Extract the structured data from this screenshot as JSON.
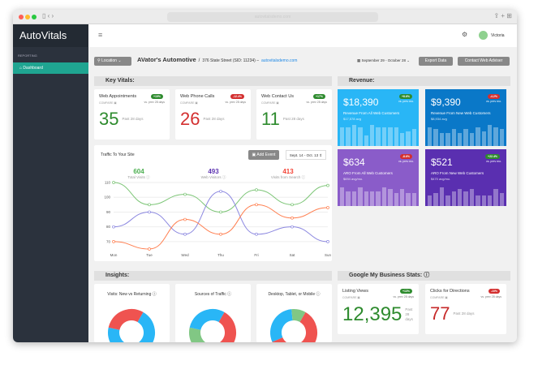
{
  "browser": {
    "url": "autovitalsdemo.com"
  },
  "app": {
    "logo": "AutoVitals",
    "sidebar_section": "REPORTING",
    "nav": [
      {
        "label": "Dashboard",
        "icon": "home-icon"
      }
    ]
  },
  "header": {
    "user": "Victoria",
    "menu_icon": "hamburger-icon"
  },
  "toolbar": {
    "location": "Location",
    "shop": "AVator's Automotive",
    "sep": "/",
    "address": "376 State Street (SID: 11234) –",
    "site": "autovitalsdemo.com",
    "date_range": "September 29 - October 28",
    "export": "Export Data",
    "contact": "Contact Web Adviser"
  },
  "key_vitals": {
    "title": "Key Vitals:",
    "cards": [
      {
        "title": "Web Appointments",
        "compare": "COMPARE",
        "badge": "+19%",
        "badge_color": "#2e8b2e",
        "vs": "vs. prev 28 days",
        "value": "35",
        "color": "#2e8b2e",
        "past": "Past 28 days"
      },
      {
        "title": "Web Phone Calls",
        "compare": "COMPARE",
        "badge": "-12.4%",
        "badge_color": "#d32f2f",
        "vs": "vs. prev 28 days",
        "value": "26",
        "color": "#d32f2f",
        "past": "Past 28 days"
      },
      {
        "title": "Web Contact Us",
        "compare": "COMPARE",
        "badge": "+17%",
        "badge_color": "#2e8b2e",
        "vs": "vs. prev 28 days",
        "value": "11",
        "color": "#2e8b2e",
        "past": "Past 28 days"
      }
    ]
  },
  "traffic": {
    "title": "Traffic To Your Site",
    "add_event": "Add Event",
    "range": "Sept. 14 - Oct. 13",
    "stats": [
      {
        "value": "604",
        "label": "Total Visits",
        "color": "#4caf50"
      },
      {
        "value": "493",
        "label": "Web Visitors",
        "color": "#5e35b1"
      },
      {
        "value": "413",
        "label": "Visits from Search",
        "color": "#f44336"
      }
    ]
  },
  "chart_data": {
    "type": "line",
    "categories": [
      "Mon",
      "Tue",
      "Wed",
      "Thu",
      "Fri",
      "Sat",
      "Sun"
    ],
    "yticks": [
      70,
      80,
      90,
      100,
      110
    ],
    "ylim": [
      65,
      110
    ],
    "grid": true,
    "series": [
      {
        "values": [
          110,
          95,
          102,
          90,
          105,
          95,
          108
        ],
        "color": "#7cc576"
      },
      {
        "values": [
          80,
          90,
          75,
          104,
          75,
          80,
          70
        ],
        "color": "#8c88e0"
      },
      {
        "values": [
          70,
          65,
          85,
          75,
          95,
          86,
          93
        ],
        "color": "#ff7f50"
      }
    ]
  },
  "revenue": {
    "title": "Revenue:",
    "cards": [
      {
        "value": "$18,390",
        "label": "Revenue From All Web Customers",
        "avg": "$17,578 avg",
        "badge": "+8.6%",
        "badge_color": "#2e8b2e",
        "vs": "vs. prev mo.",
        "bg": "#29b6f6",
        "bars": [
          9,
          9,
          10,
          9,
          5,
          10,
          9,
          9,
          9,
          9,
          6,
          7,
          8
        ]
      },
      {
        "value": "$9,390",
        "label": "Revenue From New Web Customers",
        "avg": "$8,934 avg",
        "badge": "-4.2%",
        "badge_color": "#d32f2f",
        "vs": "vs. prev mo.",
        "bg": "#0a78c8",
        "bars": [
          9,
          8,
          6,
          6,
          8,
          6,
          8,
          6,
          9,
          7,
          10,
          9,
          8
        ]
      },
      {
        "value": "$634",
        "label": "ARO From All Web Customers",
        "avg": "$694 avg/mo.",
        "badge": "-8.6%",
        "badge_color": "#d32f2f",
        "vs": "vs. prev mo.",
        "bg": "#8a5cc9",
        "bars": [
          9,
          7,
          7,
          9,
          7,
          7,
          7,
          9,
          8,
          6,
          8,
          6,
          6
        ]
      },
      {
        "value": "$521",
        "label": "ARO From New Web Customers",
        "avg": "$470 avg/mo.",
        "badge": "+22.4%",
        "badge_color": "#2e8b2e",
        "vs": "vs. prev mo.",
        "bg": "#5a2fb0",
        "bars": [
          5,
          6,
          9,
          5,
          7,
          8,
          7,
          8,
          5,
          5,
          5,
          8,
          6
        ]
      }
    ]
  },
  "insights": {
    "title": "Insights:",
    "cards": [
      {
        "title": "Visits: New vs Returning",
        "slices": [
          {
            "value": 70,
            "color": "#29b6f6"
          },
          {
            "value": 30,
            "color": "#ef5350"
          }
        ]
      },
      {
        "title": "Sources of Traffic",
        "slices": [
          {
            "value": 45,
            "color": "#ef5350"
          },
          {
            "value": 25,
            "color": "#81c784"
          },
          {
            "value": 30,
            "color": "#29b6f6"
          }
        ]
      },
      {
        "title": "Desktop, Tablet, or Mobile",
        "slices": [
          {
            "value": 60,
            "color": "#ef5350"
          },
          {
            "value": 30,
            "color": "#29b6f6"
          },
          {
            "value": 10,
            "color": "#81c784"
          }
        ]
      }
    ]
  },
  "gmb": {
    "title": "Google My Business Stats:",
    "cards": [
      {
        "title": "Listing Views",
        "compare": "COMPARE",
        "badge": "+13%",
        "badge_color": "#2e8b2e",
        "vs": "vs. prev 28 days",
        "value": "12,395",
        "color": "#2e8b2e",
        "past": "Past 28 days"
      },
      {
        "title": "Clicks for Directions",
        "compare": "COMPARE",
        "badge": "-10%",
        "badge_color": "#d32f2f",
        "vs": "vs. prev 28 days",
        "value": "77",
        "color": "#c62828",
        "past": "Past 28 days"
      }
    ]
  }
}
